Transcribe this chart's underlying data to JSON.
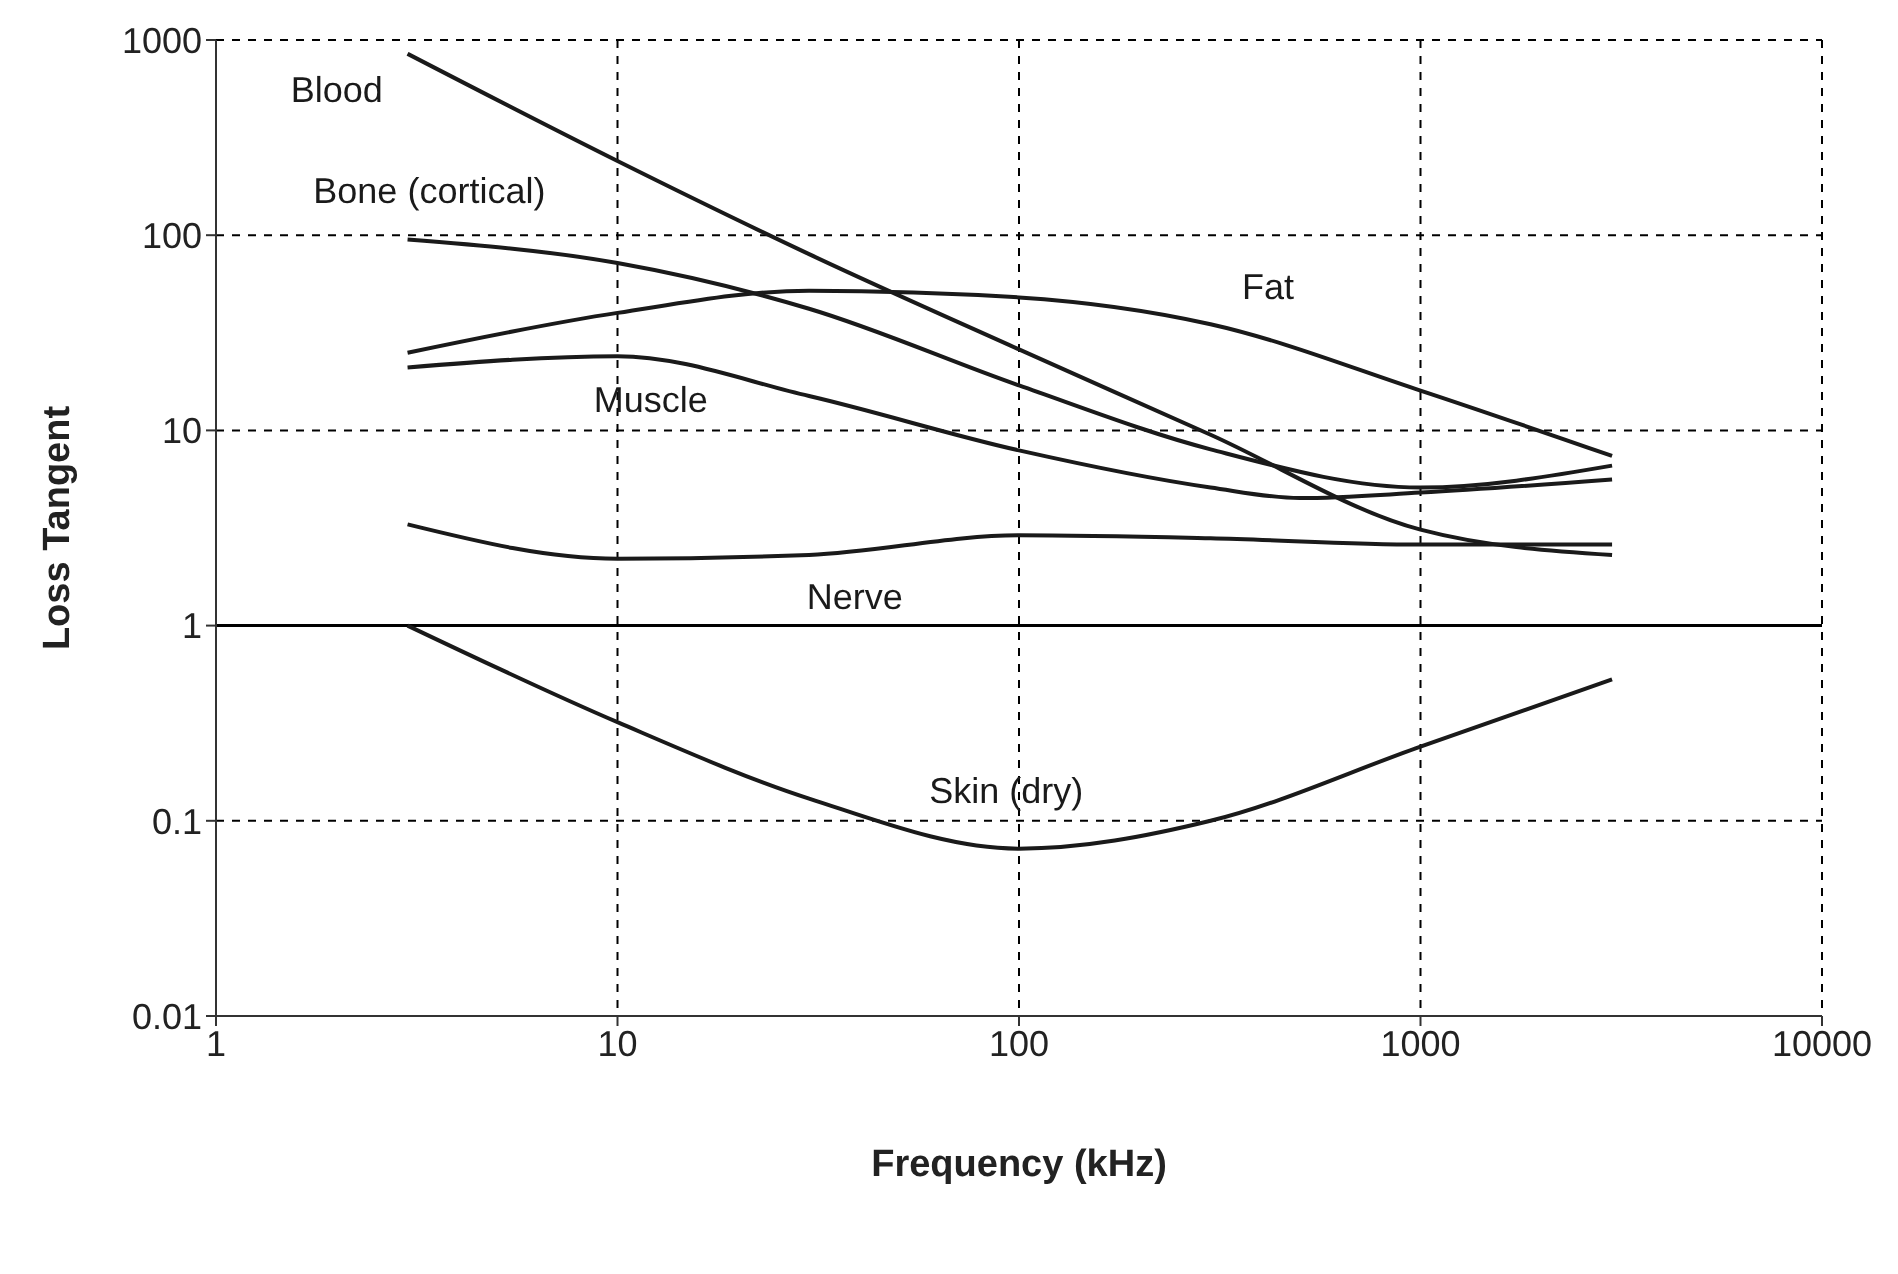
{
  "chart_data": {
    "type": "line",
    "xlabel": "Frequency (kHz)",
    "ylabel": "Loss Tangent",
    "log": "xy",
    "xlim": [
      1,
      10000
    ],
    "xticks": [
      1,
      10,
      100,
      1000,
      10000
    ],
    "ylim": [
      0.01,
      1000
    ],
    "yticks": [
      0.01,
      0.1,
      1,
      10,
      100,
      1000
    ],
    "grid": true,
    "legend": false,
    "marker": "none",
    "line_style": "solid",
    "ref_lines": [
      {
        "axis": "y",
        "value": 1,
        "color": "#000000",
        "line_style": "solid"
      }
    ],
    "series": [
      {
        "name": "Blood",
        "color": "#1a1a1a",
        "x": [
          3,
          10,
          30,
          100,
          300,
          1000,
          3000
        ],
        "values": [
          850,
          240,
          80,
          26,
          9.5,
          3.1,
          2.3
        ]
      },
      {
        "name": "Bone (cortical)",
        "color": "#1a1a1a",
        "x": [
          3,
          10,
          30,
          100,
          300,
          1000,
          3000
        ],
        "values": [
          95,
          72,
          42,
          17,
          8,
          5.1,
          6.6
        ]
      },
      {
        "name": "Fat",
        "color": "#1a1a1a",
        "x": [
          3,
          10,
          30,
          100,
          300,
          1000,
          3000
        ],
        "values": [
          25,
          40,
          52,
          48,
          35,
          16,
          7.4
        ]
      },
      {
        "name": "Muscle",
        "color": "#1a1a1a",
        "x": [
          3,
          10,
          30,
          100,
          300,
          500,
          1000,
          3000
        ],
        "values": [
          21,
          24,
          15,
          7.9,
          5.1,
          4.5,
          4.8,
          5.6
        ]
      },
      {
        "name": "Nerve",
        "color": "#1a1a1a",
        "x": [
          3,
          10,
          30,
          100,
          300,
          1000,
          3000
        ],
        "values": [
          3.3,
          2.2,
          2.3,
          2.9,
          2.8,
          2.6,
          2.6
        ]
      },
      {
        "name": "Skin (dry)",
        "color": "#1a1a1a",
        "x": [
          3,
          10,
          30,
          100,
          300,
          1000,
          3000
        ],
        "values": [
          1.0,
          0.32,
          0.13,
          0.072,
          0.1,
          0.24,
          0.53
        ]
      }
    ]
  }
}
